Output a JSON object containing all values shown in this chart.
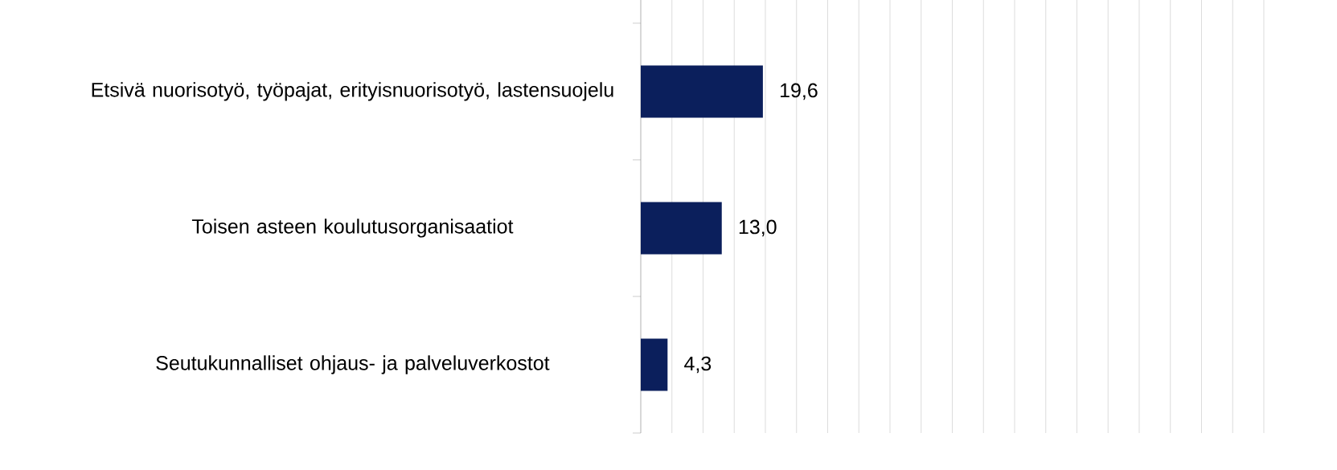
{
  "chart_data": {
    "type": "bar",
    "orientation": "horizontal",
    "categories": [
      "Etsivä nuorisotyö, työpajat, erityisnuorisotyö, lastensuojelu",
      "Toisen asteen koulutusorganisaatiot",
      "Seutukunnalliset ohjaus- ja palveluverkostot"
    ],
    "values": [
      19.6,
      13.0,
      4.3
    ],
    "value_labels": [
      "19,6",
      "13,0",
      "4,3"
    ],
    "color": "#0b1f5c",
    "xlim": [
      0,
      100
    ],
    "grid": "x",
    "tick_labels": "y"
  }
}
